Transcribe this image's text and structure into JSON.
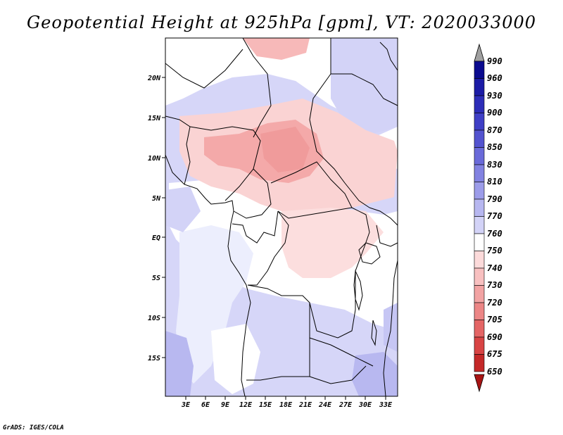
{
  "title": "Geopotential Height at 925hPa [gpm], VT: 2020033000",
  "footer": "GrADS: IGES/COLA",
  "axes": {
    "lat_labels": [
      "20N",
      "15N",
      "10N",
      "5N",
      "EQ",
      "5S",
      "10S",
      "15S"
    ],
    "lon_labels": [
      "3E",
      "6E",
      "9E",
      "12E",
      "15E",
      "18E",
      "21E",
      "24E",
      "27E",
      "30E",
      "33E"
    ]
  },
  "colorbar": {
    "labels": [
      "990",
      "960",
      "930",
      "900",
      "870",
      "850",
      "830",
      "810",
      "790",
      "770",
      "760",
      "750",
      "740",
      "730",
      "720",
      "705",
      "690",
      "675",
      "650"
    ],
    "colors": [
      "#0b0b8f",
      "#1c1ca6",
      "#2d2db8",
      "#3f3fc6",
      "#5353cf",
      "#6a6ad9",
      "#8282e1",
      "#9c9ce9",
      "#b7b7f0",
      "#d3d3f7",
      "#ffffff",
      "#fcdada",
      "#f8c0c0",
      "#f2a3a3",
      "#ec8686",
      "#e46565",
      "#d84444",
      "#c42828",
      "#a81414"
    ],
    "top_arrow_color": "#a0a0a0"
  },
  "chart_data": {
    "type": "heatmap",
    "title": "Geopotential Height at 925hPa [gpm], VT: 2020033000",
    "variable": "Geopotential Height",
    "level": "925hPa",
    "units": "gpm",
    "valid_time": "2020033000",
    "lon_range": [
      0,
      34
    ],
    "lat_range": [
      -20,
      24
    ],
    "contour_levels": [
      650,
      675,
      690,
      705,
      720,
      730,
      740,
      750,
      760,
      770,
      790,
      810,
      830,
      850,
      870,
      900,
      930,
      960,
      990
    ]
  }
}
